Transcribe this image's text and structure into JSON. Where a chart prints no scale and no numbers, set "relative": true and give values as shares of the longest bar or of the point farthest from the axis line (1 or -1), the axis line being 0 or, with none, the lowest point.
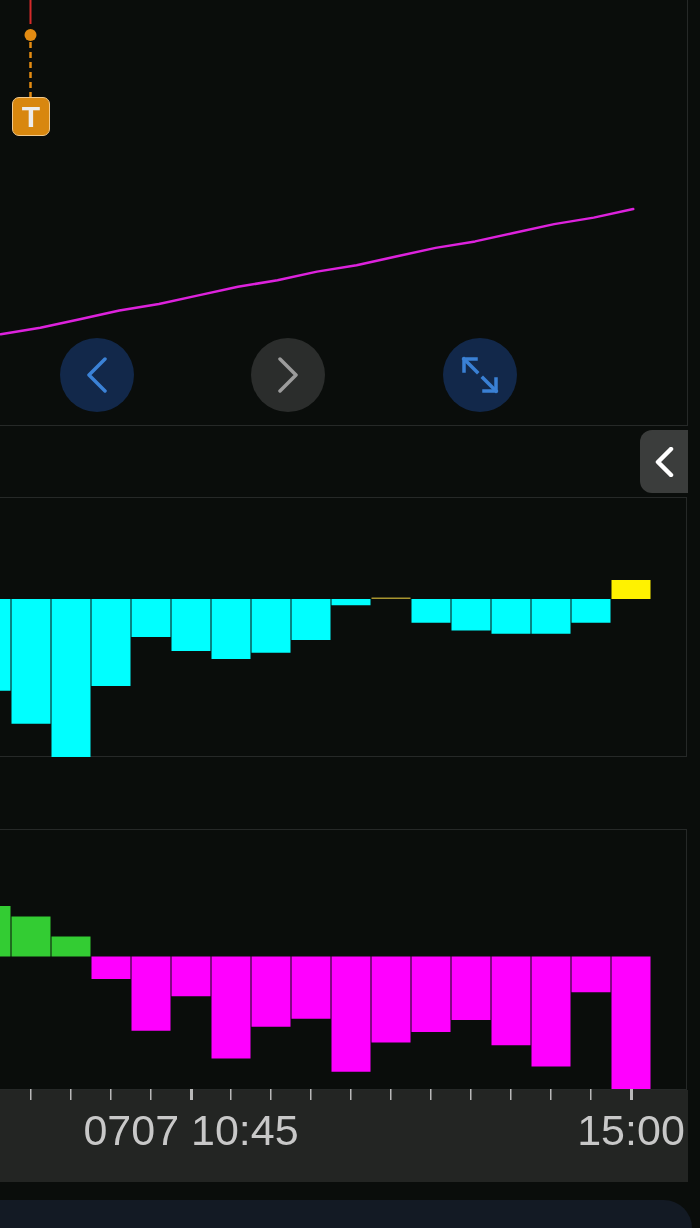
{
  "chart_data": [
    {
      "type": "line",
      "relative": true,
      "categories": [
        null,
        null,
        null,
        null,
        null,
        null,
        null,
        null,
        null,
        null,
        null,
        null,
        null,
        null,
        null,
        null,
        null
      ],
      "series": [
        {
          "color": "#dd22dd",
          "values": [
            0.42,
            0.45,
            0.49,
            0.53,
            0.56,
            0.6,
            0.64,
            0.67,
            0.71,
            0.74,
            0.78,
            0.82,
            0.85,
            0.89,
            0.93,
            0.96,
            1
          ]
        }
      ],
      "tick_labels": false,
      "annotations": [
        "T"
      ]
    },
    {
      "type": "bar",
      "relative": true,
      "categories": [
        null,
        null,
        null,
        null,
        null,
        null,
        null,
        null,
        null,
        null,
        null,
        null,
        null,
        null,
        null,
        null,
        null
      ],
      "values": [
        -0.58,
        -0.79,
        -1,
        -0.55,
        -0.24,
        -0.33,
        -0.38,
        -0.34,
        -0.26,
        -0.04,
        0.01,
        -0.15,
        -0.2,
        -0.22,
        -0.22,
        -0.15,
        0.12
      ],
      "colors": [
        "#00ffff",
        "#00ffff",
        "#00ffff",
        "#00ffff",
        "#00ffff",
        "#00ffff",
        "#00ffff",
        "#00ffff",
        "#00ffff",
        "#00ffff",
        "#a89530",
        "#00ffff",
        "#00ffff",
        "#00ffff",
        "#00ffff",
        "#00ffff",
        "#fff200"
      ],
      "tick_labels": false
    },
    {
      "type": "bar",
      "relative": true,
      "categories": [
        null,
        null,
        null,
        null,
        null,
        "0707 10:45",
        null,
        null,
        null,
        null,
        null,
        null,
        null,
        null,
        null,
        null,
        "15:00"
      ],
      "values": [
        0.38,
        0.3,
        0.15,
        -0.17,
        -0.56,
        -0.3,
        -0.77,
        -0.53,
        -0.47,
        -0.87,
        -0.65,
        -0.57,
        -0.48,
        -0.67,
        -0.83,
        -0.27,
        -1
      ],
      "colors": [
        "#33cc33",
        "#33cc33",
        "#33cc33",
        "#ff00ff",
        "#ff00ff",
        "#ff00ff",
        "#ff00ff",
        "#ff00ff",
        "#ff00ff",
        "#ff00ff",
        "#ff00ff",
        "#ff00ff",
        "#ff00ff",
        "#ff00ff",
        "#ff00ff",
        "#ff00ff",
        "#ff00ff"
      ],
      "tick_labels": "x"
    }
  ]
}
